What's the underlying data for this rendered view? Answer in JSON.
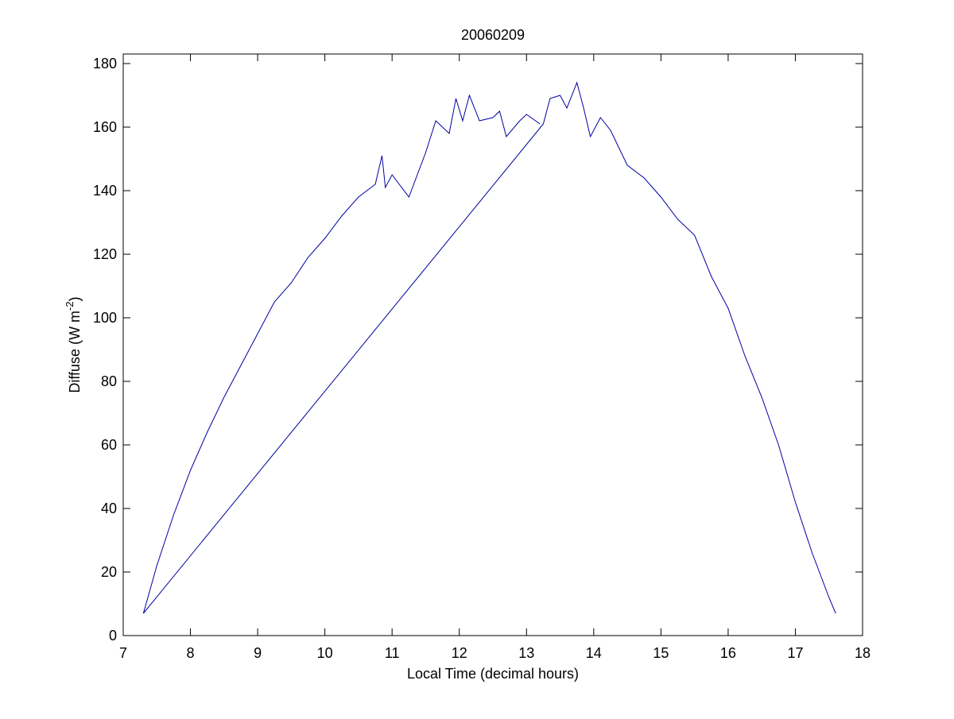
{
  "chart_data": {
    "type": "line",
    "title": "20060209",
    "xlabel": "Local Time (decimal hours)",
    "ylabel": [
      "Diffuse (W m",
      "-2",
      ")"
    ],
    "xlim": [
      7,
      18
    ],
    "ylim": [
      0,
      183
    ],
    "xticks": [
      7,
      8,
      9,
      10,
      11,
      12,
      13,
      14,
      15,
      16,
      17,
      18
    ],
    "yticks": [
      0,
      20,
      40,
      60,
      80,
      100,
      120,
      140,
      160,
      180
    ],
    "series": [
      {
        "color": "#0000a0",
        "x": [
          13.2,
          13.0,
          12.9,
          12.7,
          12.6,
          12.5,
          12.3,
          12.15,
          12.05,
          11.95,
          11.85,
          11.65,
          11.5,
          11.25,
          11.0,
          10.9,
          10.85,
          10.75,
          10.5,
          10.25,
          10.0,
          9.75,
          9.5,
          9.25,
          9.0,
          8.75,
          8.5,
          8.25,
          8.0,
          7.75,
          7.5,
          7.3,
          13.25,
          13.35,
          13.5,
          13.6,
          13.75,
          13.85,
          13.95,
          14.1,
          14.25,
          14.5,
          14.75,
          15.0,
          15.25,
          15.5,
          15.75,
          16.0,
          16.25,
          16.5,
          16.75,
          17.0,
          17.25,
          17.5,
          17.6
        ],
        "values": [
          161,
          164,
          162,
          157,
          165,
          163,
          162,
          170,
          162,
          169,
          158,
          162,
          152,
          138,
          145,
          141,
          151,
          142,
          138,
          132,
          125,
          119,
          111,
          105,
          95,
          85,
          75,
          64,
          52,
          38,
          22,
          7,
          161,
          169,
          170,
          166,
          174,
          166,
          157,
          163,
          159,
          148,
          144,
          138,
          131,
          126,
          113,
          103,
          88,
          75,
          60,
          42,
          26,
          12,
          7
        ]
      }
    ]
  }
}
